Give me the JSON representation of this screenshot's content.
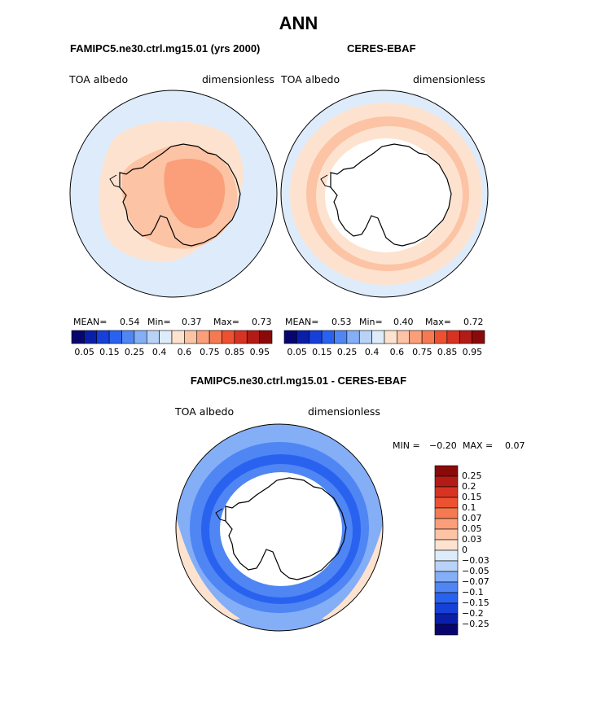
{
  "page_title": "ANN",
  "panels": [
    {
      "case": "FAMIPC5.ne30.ctrl.mg15.01 (yrs 2000)",
      "variable": "TOA albedo",
      "units": "dimensionless",
      "mean_label": "MEAN=",
      "mean": "0.54",
      "min_label": "Min=",
      "min": "0.37",
      "max_label": "Max=",
      "max": "0.73"
    },
    {
      "case": "CERES-EBAF",
      "variable": "TOA albedo",
      "units": "dimensionless",
      "mean_label": "MEAN=",
      "mean": "0.53",
      "min_label": "Min=",
      "min": "0.40",
      "max_label": "Max=",
      "max": "0.72"
    }
  ],
  "colorbar_top": {
    "colors": [
      "#08066e",
      "#0a1fa8",
      "#1640d8",
      "#2a62f0",
      "#4f86f4",
      "#84aef6",
      "#b9d2f8",
      "#deebfb",
      "#fde3cf",
      "#fcc3a4",
      "#fa9f7a",
      "#f57a52",
      "#ee5131",
      "#d73323",
      "#b31b17",
      "#8a0a0a"
    ],
    "tick_labels": [
      "0.05",
      "0.15",
      "0.25",
      "0.4",
      "0.6",
      "0.75",
      "0.85",
      "0.95"
    ]
  },
  "diff_panel": {
    "title": "FAMIPC5.ne30.ctrl.mg15.01 - CERES-EBAF",
    "variable": "TOA albedo",
    "units": "dimensionless",
    "min_label": "MIN =",
    "min": "−0.20",
    "max_label": "MAX =",
    "max": "0.07"
  },
  "colorbar_diff": {
    "colors": [
      "#8a0a0a",
      "#b31b17",
      "#d73323",
      "#ee5131",
      "#f57a52",
      "#fa9f7a",
      "#fcc3a4",
      "#fde3cf",
      "#deebfb",
      "#b9d2f8",
      "#84aef6",
      "#4f86f4",
      "#2a62f0",
      "#1640d8",
      "#0a1fa8",
      "#08066e"
    ],
    "tick_labels": [
      "0.25",
      "0.2",
      "0.15",
      "0.1",
      "0.07",
      "0.05",
      "0.03",
      "0",
      "−0.03",
      "−0.05",
      "−0.07",
      "−0.1",
      "−0.15",
      "−0.2",
      "−0.25"
    ]
  },
  "chart_data": [
    {
      "type": "heatmap",
      "title": "FAMIPC5.ne30.ctrl.mg15.01 (yrs 2000)",
      "variable": "TOA albedo",
      "units": "dimensionless",
      "projection": "south polar stereographic",
      "mean": 0.54,
      "min": 0.37,
      "max": 0.73,
      "levels": [
        0.05,
        0.1,
        0.15,
        0.2,
        0.25,
        0.3,
        0.4,
        0.5,
        0.6,
        0.65,
        0.7,
        0.75,
        0.8,
        0.85,
        0.9,
        0.95
      ]
    },
    {
      "type": "heatmap",
      "title": "CERES-EBAF",
      "variable": "TOA albedo",
      "units": "dimensionless",
      "projection": "south polar stereographic",
      "mean": 0.53,
      "min": 0.4,
      "max": 0.72,
      "levels": [
        0.05,
        0.1,
        0.15,
        0.2,
        0.25,
        0.3,
        0.4,
        0.5,
        0.6,
        0.65,
        0.7,
        0.75,
        0.8,
        0.85,
        0.9,
        0.95
      ]
    },
    {
      "type": "heatmap",
      "title": "FAMIPC5.ne30.ctrl.mg15.01 - CERES-EBAF",
      "variable": "TOA albedo",
      "units": "dimensionless",
      "projection": "south polar stereographic",
      "min": -0.2,
      "max": 0.07,
      "levels": [
        -0.25,
        -0.2,
        -0.15,
        -0.1,
        -0.07,
        -0.05,
        -0.03,
        0,
        0.03,
        0.05,
        0.07,
        0.1,
        0.15,
        0.2,
        0.25
      ]
    }
  ]
}
